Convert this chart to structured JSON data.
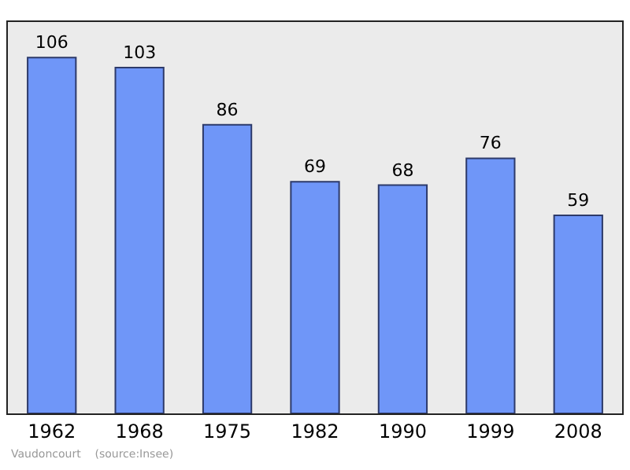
{
  "chart_data": {
    "type": "bar",
    "categories": [
      "1962",
      "1968",
      "1975",
      "1982",
      "1990",
      "1999",
      "2008"
    ],
    "values": [
      106,
      103,
      86,
      69,
      68,
      76,
      59
    ],
    "color": "#6f96f8",
    "data_labels": true,
    "grid": false,
    "legend": false,
    "annotations": [
      "Vaudoncourt    (source:Insee)"
    ]
  }
}
